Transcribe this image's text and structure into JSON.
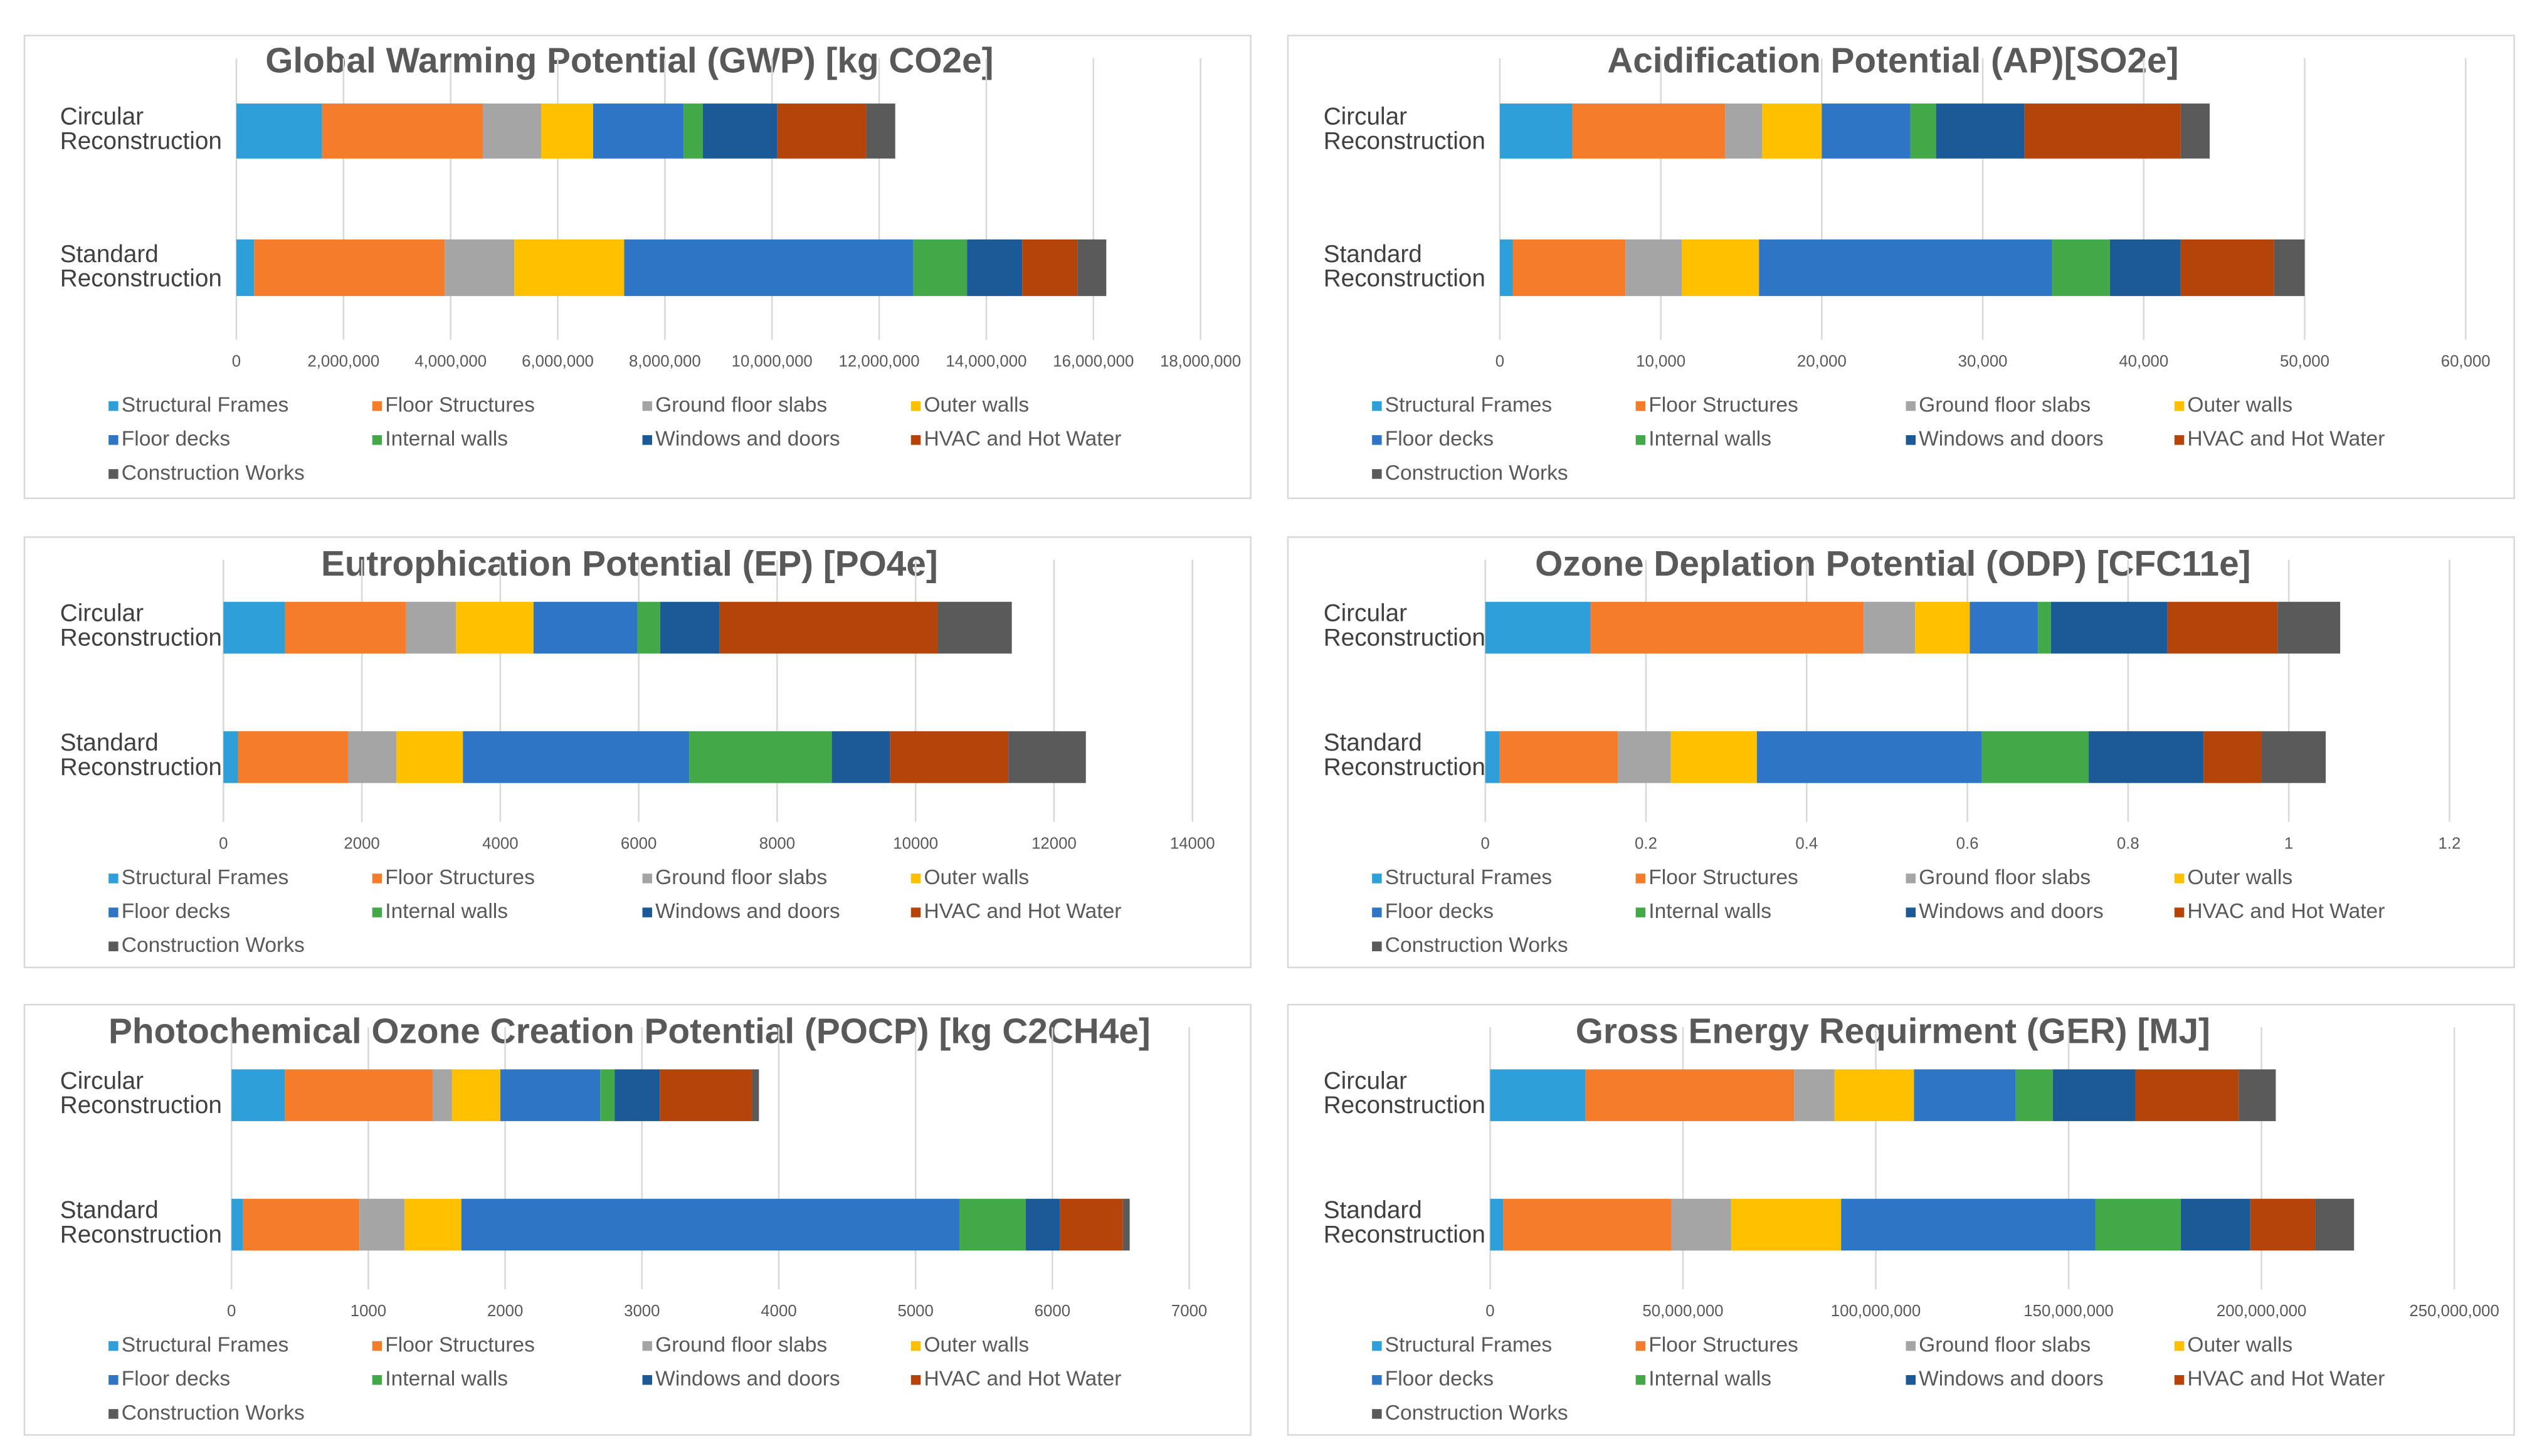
{
  "chart_data": [
    {
      "type": "bar",
      "horizontal": true,
      "stacked": true,
      "title": "Global Warming Potential (GWP) [kg CO2e]",
      "categories": [
        "Circular Reconstruction",
        "Standard Reconstruction"
      ],
      "series": [
        {
          "name": "Structural Frames",
          "color": "#2e9fd9",
          "values": [
            1600000,
            330000
          ]
        },
        {
          "name": "Floor Structures",
          "color": "#f47c2a",
          "values": [
            3000000,
            3560000
          ]
        },
        {
          "name": "Ground floor slabs",
          "color": "#a5a5a5",
          "values": [
            1090000,
            1300000
          ]
        },
        {
          "name": "Outer walls",
          "color": "#ffc000",
          "values": [
            970000,
            2050000
          ]
        },
        {
          "name": "Floor decks",
          "color": "#2f75c6",
          "values": [
            1690000,
            5400000
          ]
        },
        {
          "name": "Internal walls",
          "color": "#43a847",
          "values": [
            360000,
            1000000
          ]
        },
        {
          "name": "Windows and doors",
          "color": "#1b5a96",
          "values": [
            1390000,
            1030000
          ]
        },
        {
          "name": "HVAC and Hot Water",
          "color": "#b4440a",
          "values": [
            1660000,
            1030000
          ]
        },
        {
          "name": "Construction Works",
          "color": "#5a5a5a",
          "values": [
            540000,
            540000
          ]
        }
      ],
      "xlim": [
        0,
        18000000
      ],
      "xticks": [
        0,
        {
          "value": 2000000,
          "label": "2,000,000"
        },
        {
          "value": 4000000,
          "label": "4,000,000"
        },
        {
          "value": 6000000,
          "label": "6,000,000"
        },
        {
          "value": 8000000,
          "label": "8,000,000"
        },
        {
          "value": 10000000,
          "label": "10,000,000"
        },
        {
          "value": 12000000,
          "label": "12,000,000"
        },
        {
          "value": 14000000,
          "label": "14,000,000"
        },
        {
          "value": 16000000,
          "label": "16,000,000"
        },
        {
          "value": 18000000,
          "label": "18,000,000"
        }
      ],
      "grid": true
    },
    {
      "type": "bar",
      "horizontal": true,
      "stacked": true,
      "title": "Acidification Potential (AP)[SO2e]",
      "categories": [
        "Circular Reconstruction",
        "Standard Reconstruction"
      ],
      "series": [
        {
          "name": "Structural Frames",
          "color": "#2e9fd9",
          "values": [
            4500,
            800
          ]
        },
        {
          "name": "Floor Structures",
          "color": "#f47c2a",
          "values": [
            9500,
            7000
          ]
        },
        {
          "name": "Ground floor slabs",
          "color": "#a5a5a5",
          "values": [
            2300,
            3500
          ]
        },
        {
          "name": "Outer walls",
          "color": "#ffc000",
          "values": [
            3700,
            4800
          ]
        },
        {
          "name": "Floor decks",
          "color": "#2f75c6",
          "values": [
            5500,
            18200
          ]
        },
        {
          "name": "Internal walls",
          "color": "#43a847",
          "values": [
            1600,
            3600
          ]
        },
        {
          "name": "Windows and doors",
          "color": "#1b5a96",
          "values": [
            5500,
            4400
          ]
        },
        {
          "name": "HVAC and Hot Water",
          "color": "#b4440a",
          "values": [
            9700,
            5800
          ]
        },
        {
          "name": "Construction Works",
          "color": "#5a5a5a",
          "values": [
            1800,
            1900
          ]
        }
      ],
      "xlim": [
        0,
        60000
      ],
      "xticks": [
        0,
        {
          "value": 10000,
          "label": "10,000"
        },
        {
          "value": 20000,
          "label": "20,000"
        },
        {
          "value": 30000,
          "label": "30,000"
        },
        {
          "value": 40000,
          "label": "40,000"
        },
        {
          "value": 50000,
          "label": "50,000"
        },
        {
          "value": 60000,
          "label": "60,000"
        }
      ],
      "grid": true
    },
    {
      "type": "bar",
      "horizontal": true,
      "stacked": true,
      "title": "Eutrophication Potential (EP) [PO4e]",
      "categories": [
        "Circular Reconstruction",
        "Standard Reconstruction"
      ],
      "series": [
        {
          "name": "Structural Frames",
          "color": "#2e9fd9",
          "values": [
            890,
            210
          ]
        },
        {
          "name": "Floor Structures",
          "color": "#f47c2a",
          "values": [
            1750,
            1590
          ]
        },
        {
          "name": "Ground floor slabs",
          "color": "#a5a5a5",
          "values": [
            720,
            700
          ]
        },
        {
          "name": "Outer walls",
          "color": "#ffc000",
          "values": [
            1120,
            960
          ]
        },
        {
          "name": "Floor decks",
          "color": "#2f75c6",
          "values": [
            1500,
            3270
          ]
        },
        {
          "name": "Internal walls",
          "color": "#43a847",
          "values": [
            330,
            2060
          ]
        },
        {
          "name": "Windows and doors",
          "color": "#1b5a96",
          "values": [
            860,
            840
          ]
        },
        {
          "name": "HVAC and Hot Water",
          "color": "#b4440a",
          "values": [
            3150,
            1710
          ]
        },
        {
          "name": "Construction Works",
          "color": "#5a5a5a",
          "values": [
            1070,
            1120
          ]
        }
      ],
      "xlim": [
        0,
        14000
      ],
      "xticks": [
        0,
        2000,
        4000,
        6000,
        8000,
        10000,
        12000,
        14000
      ],
      "grid": true
    },
    {
      "type": "bar",
      "horizontal": true,
      "stacked": true,
      "title": "Ozone Deplation Potential (ODP) [CFC11e]",
      "categories": [
        "Circular Reconstruction",
        "Standard Reconstruction"
      ],
      "series": [
        {
          "name": "Structural Frames",
          "color": "#2e9fd9",
          "values": [
            0.131,
            0.018
          ]
        },
        {
          "name": "Floor Structures",
          "color": "#f47c2a",
          "values": [
            0.34,
            0.147
          ]
        },
        {
          "name": "Ground floor slabs",
          "color": "#a5a5a5",
          "values": [
            0.064,
            0.066
          ]
        },
        {
          "name": "Outer walls",
          "color": "#ffc000",
          "values": [
            0.068,
            0.107
          ]
        },
        {
          "name": "Floor decks",
          "color": "#2f75c6",
          "values": [
            0.085,
            0.28
          ]
        },
        {
          "name": "Internal walls",
          "color": "#43a847",
          "values": [
            0.016,
            0.133
          ]
        },
        {
          "name": "Windows and doors",
          "color": "#1b5a96",
          "values": [
            0.145,
            0.143
          ]
        },
        {
          "name": "HVAC and Hot Water",
          "color": "#b4440a",
          "values": [
            0.137,
            0.072
          ]
        },
        {
          "name": "Construction Works",
          "color": "#5a5a5a",
          "values": [
            0.078,
            0.08
          ]
        }
      ],
      "xlim": [
        0,
        1.2
      ],
      "xticks": [
        0,
        0.2,
        0.4,
        0.6,
        0.8,
        1,
        1.2
      ],
      "grid": true
    },
    {
      "type": "bar",
      "horizontal": true,
      "stacked": true,
      "title": "Photochemical Ozone Creation Potential (POCP) [kg C2CH4e]",
      "categories": [
        "Circular Reconstruction",
        "Standard Reconstruction"
      ],
      "series": [
        {
          "name": "Structural Frames",
          "color": "#2e9fd9",
          "values": [
            390,
            85
          ]
        },
        {
          "name": "Floor Structures",
          "color": "#f47c2a",
          "values": [
            1080,
            850
          ]
        },
        {
          "name": "Ground floor slabs",
          "color": "#a5a5a5",
          "values": [
            140,
            330
          ]
        },
        {
          "name": "Outer walls",
          "color": "#ffc000",
          "values": [
            355,
            415
          ]
        },
        {
          "name": "Floor decks",
          "color": "#2f75c6",
          "values": [
            730,
            3640
          ]
        },
        {
          "name": "Internal walls",
          "color": "#43a847",
          "values": [
            105,
            485
          ]
        },
        {
          "name": "Windows and doors",
          "color": "#1b5a96",
          "values": [
            330,
            250
          ]
        },
        {
          "name": "HVAC and Hot Water",
          "color": "#b4440a",
          "values": [
            675,
            460
          ]
        },
        {
          "name": "Construction Works",
          "color": "#5a5a5a",
          "values": [
            50,
            50
          ]
        }
      ],
      "xlim": [
        0,
        7000
      ],
      "xticks": [
        0,
        1000,
        2000,
        3000,
        4000,
        5000,
        6000,
        7000
      ],
      "grid": true
    },
    {
      "type": "bar",
      "horizontal": true,
      "stacked": true,
      "title": "Gross Energy Requirment (GER) [MJ]",
      "categories": [
        "Circular Reconstruction",
        "Standard Reconstruction"
      ],
      "series": [
        {
          "name": "Structural Frames",
          "color": "#2e9fd9",
          "values": [
            24700000,
            3400000
          ]
        },
        {
          "name": "Floor Structures",
          "color": "#f47c2a",
          "values": [
            54100000,
            43600000
          ]
        },
        {
          "name": "Ground floor slabs",
          "color": "#a5a5a5",
          "values": [
            10500000,
            15500000
          ]
        },
        {
          "name": "Outer walls",
          "color": "#ffc000",
          "values": [
            20600000,
            28500000
          ]
        },
        {
          "name": "Floor decks",
          "color": "#2f75c6",
          "values": [
            26400000,
            65900000
          ]
        },
        {
          "name": "Internal walls",
          "color": "#43a847",
          "values": [
            9600000,
            22200000
          ]
        },
        {
          "name": "Windows and doors",
          "color": "#1b5a96",
          "values": [
            21400000,
            18000000
          ]
        },
        {
          "name": "HVAC and Hot Water",
          "color": "#b4440a",
          "values": [
            26800000,
            16800000
          ]
        },
        {
          "name": "Construction Works",
          "color": "#5a5a5a",
          "values": [
            9600000,
            10100000
          ]
        }
      ],
      "xlim": [
        0,
        250000000
      ],
      "xticks": [
        0,
        {
          "value": 50000000,
          "label": "50,000,000"
        },
        {
          "value": 100000000,
          "label": "100,000,000"
        },
        {
          "value": 150000000,
          "label": "150,000,000"
        },
        {
          "value": 200000000,
          "label": "200,000,000"
        },
        {
          "value": 250000000,
          "label": "250,000,000"
        }
      ],
      "grid": true
    }
  ]
}
